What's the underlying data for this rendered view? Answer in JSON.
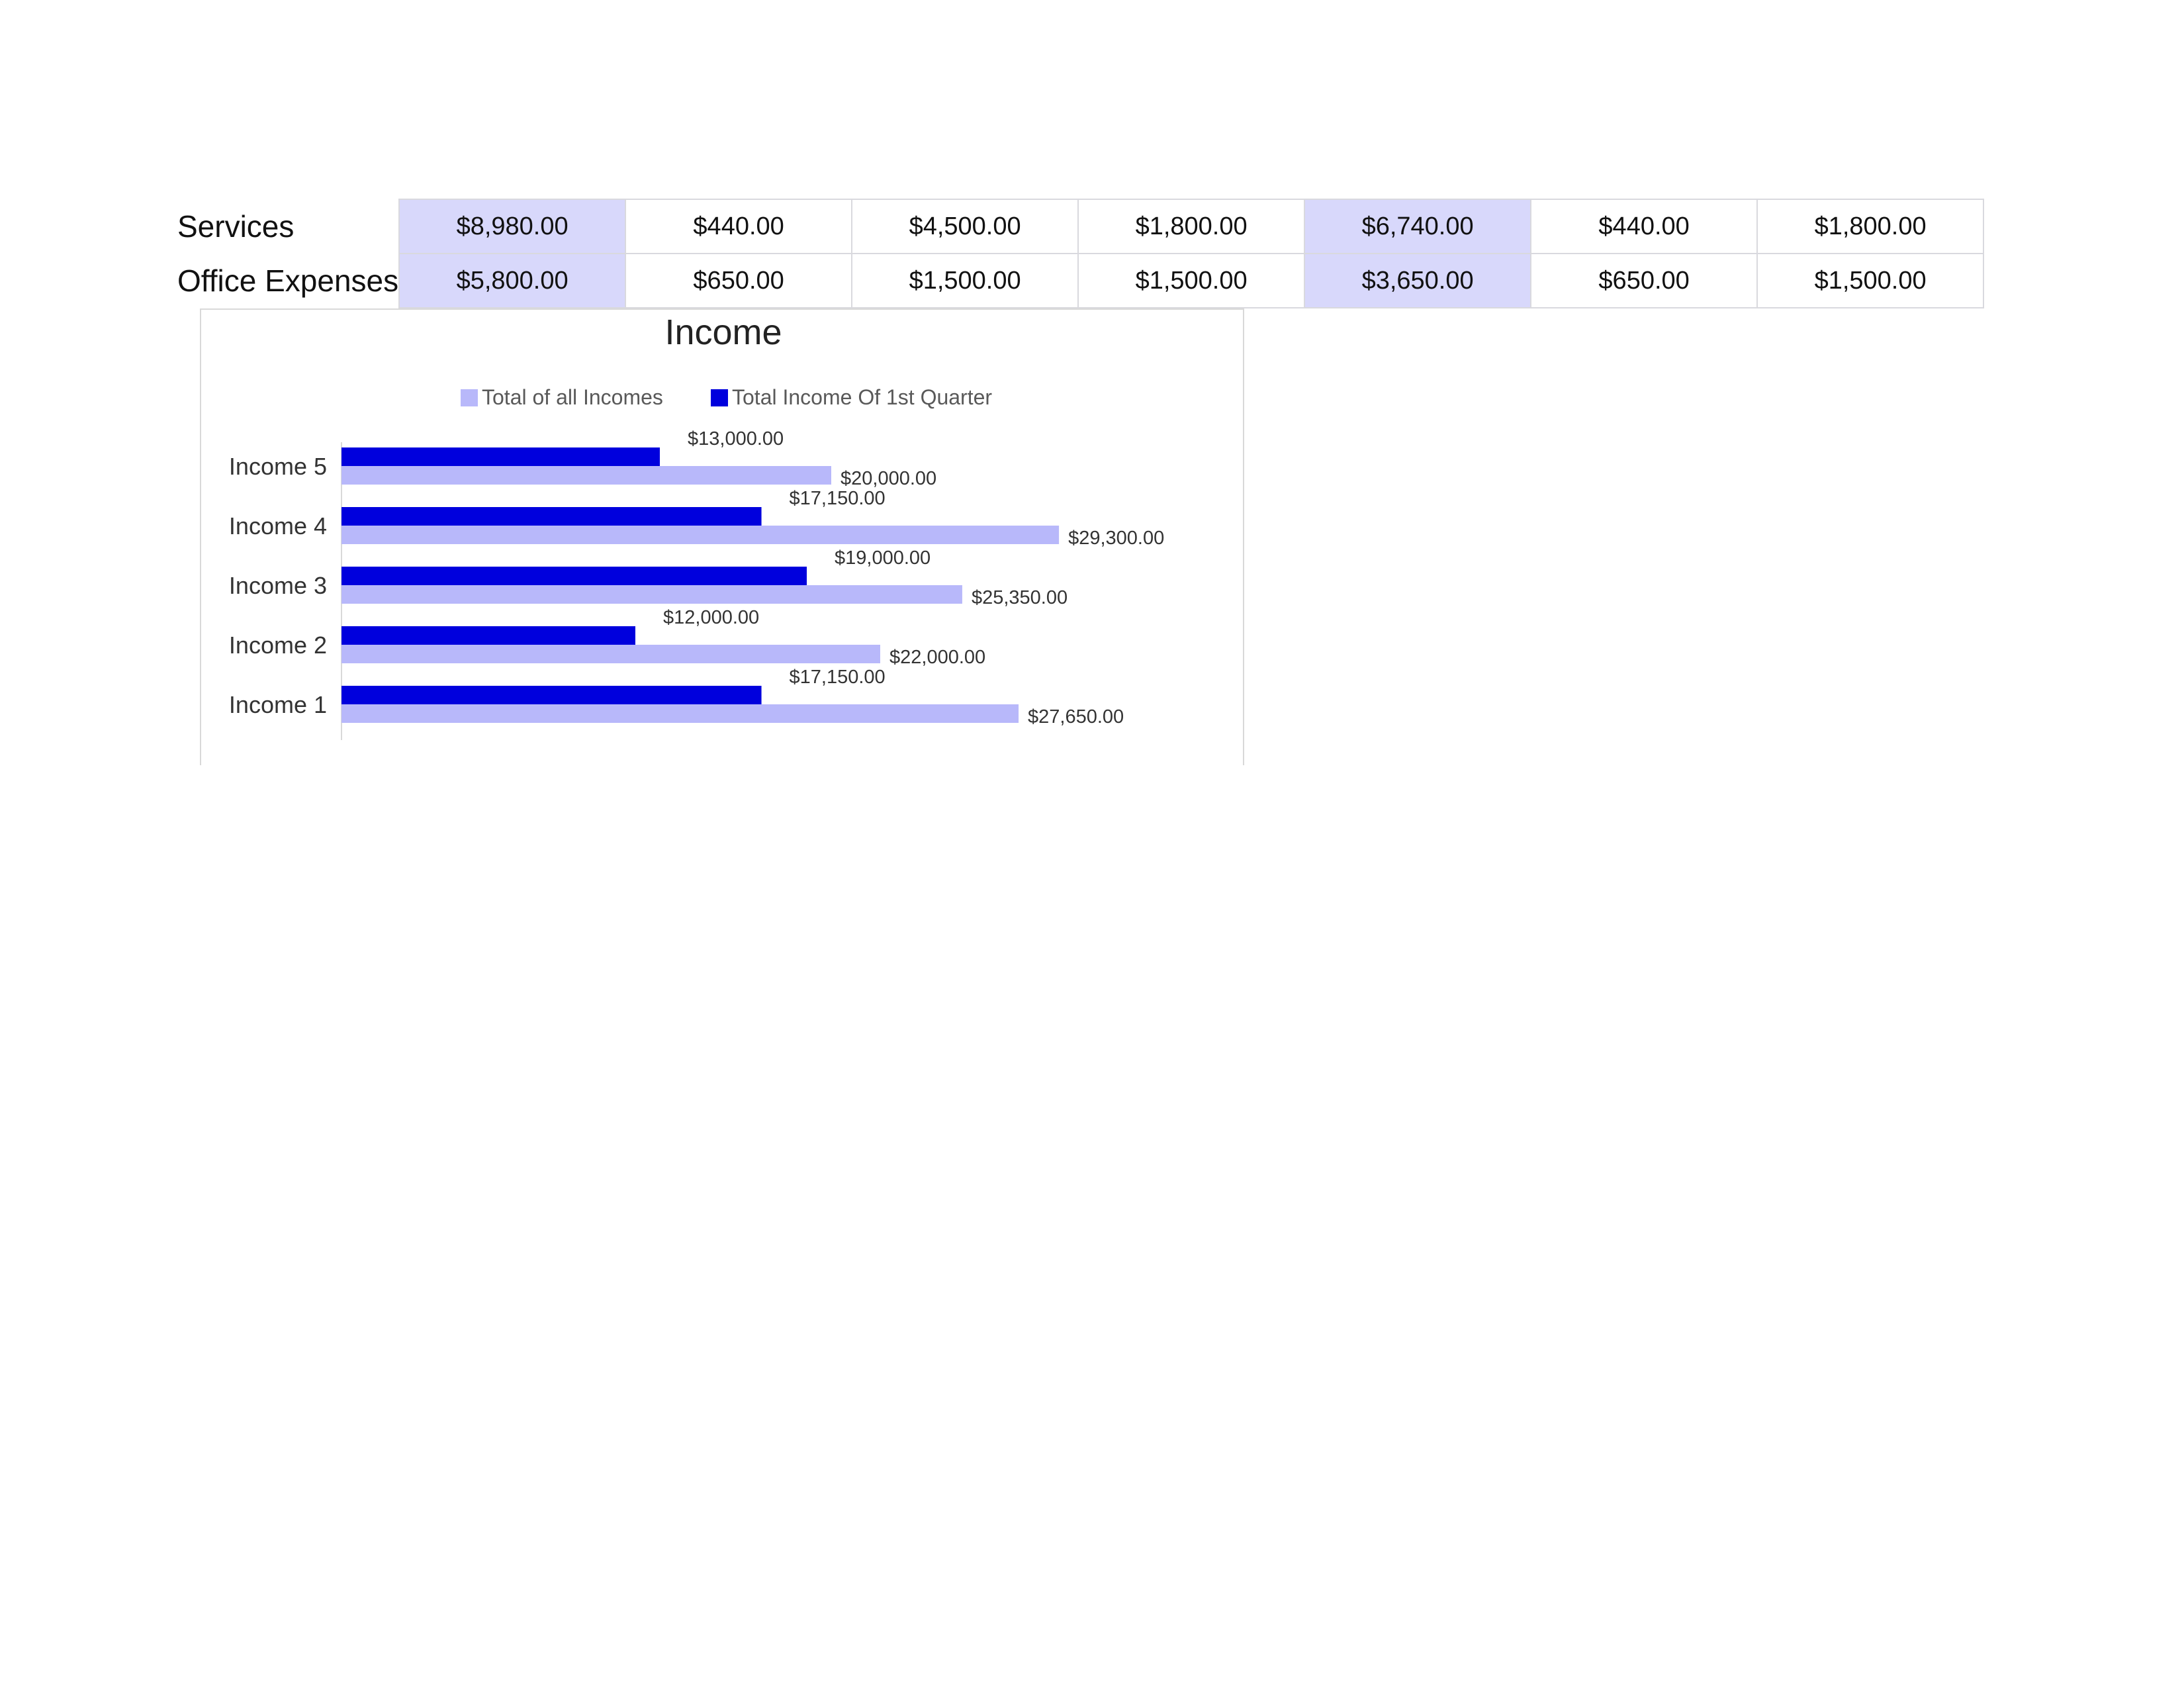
{
  "table": {
    "rows": [
      {
        "label": "Services",
        "cells": [
          "$8,980.00",
          "$440.00",
          "$4,500.00",
          "$1,800.00",
          "$6,740.00",
          "$440.00",
          "$1,800.00"
        ]
      },
      {
        "label": "Office Expenses",
        "cells": [
          "$5,800.00",
          "$650.00",
          "$1,500.00",
          "$1,500.00",
          "$3,650.00",
          "$650.00",
          "$1,500.00"
        ]
      }
    ],
    "highlight_color": "#d8d8fb"
  },
  "chart_data": {
    "type": "bar",
    "orientation": "horizontal",
    "title": "Income",
    "categories": [
      "Income 5",
      "Income 4",
      "Income 3",
      "Income 2",
      "Income 1"
    ],
    "series": [
      {
        "name": "Total of all Incomes",
        "color": "#b8b8fa",
        "values": [
          20000,
          29300,
          25350,
          22000,
          27650
        ],
        "labels": [
          "$20,000.00",
          "$29,300.00",
          "$25,350.00",
          "$22,000.00",
          "$27,650.00"
        ]
      },
      {
        "name": "Total Income Of 1st Quarter",
        "color": "#0000dd",
        "values": [
          13000,
          17150,
          19000,
          12000,
          17150
        ],
        "labels": [
          "$13,000.00",
          "$17,150.00",
          "$19,000.00",
          "$12,000.00",
          "$17,150.00"
        ]
      }
    ],
    "xlim": [
      0,
      30000
    ],
    "grid": false,
    "legend_position": "top"
  }
}
